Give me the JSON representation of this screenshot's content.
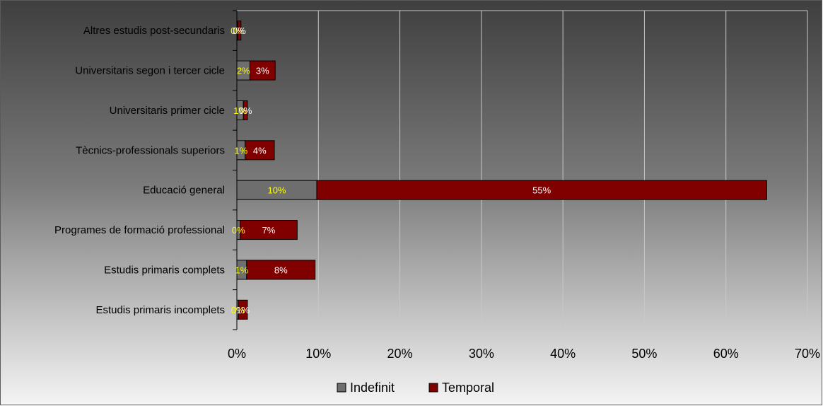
{
  "chart_data": {
    "type": "bar",
    "orientation": "horizontal",
    "stacked": true,
    "categories": [
      "Altres estudis post-secundaris",
      "Universitaris segon i tercer cicle",
      "Universitaris primer cicle",
      "Tècnics-professionals superiors",
      "Educació general",
      "Programes de formació professional",
      "Estudis primaris complets",
      "Estudis primaris incomplets"
    ],
    "series": [
      {
        "name": "Indefinit",
        "color": "#6e6e6e",
        "label_color": "#ffff00",
        "values": [
          0.1,
          1.6,
          0.8,
          1.0,
          9.8,
          0.4,
          1.2,
          0.2
        ],
        "labels": [
          "0%",
          "2%",
          "1%",
          "1%",
          "10%",
          "0%",
          "1%",
          "0%"
        ]
      },
      {
        "name": "Temporal",
        "color": "#800000",
        "label_color": "#ffffff",
        "values": [
          0.4,
          3.1,
          0.5,
          3.6,
          55.2,
          7.0,
          8.4,
          1.1
        ],
        "labels": [
          "0%",
          "3%",
          "0%",
          "4%",
          "55%",
          "7%",
          "8%",
          "1%"
        ]
      }
    ],
    "xaxis": {
      "min": 0,
      "max": 70,
      "ticks": [
        "0%",
        "10%",
        "20%",
        "30%",
        "40%",
        "50%",
        "60%",
        "70%"
      ]
    },
    "grid": true,
    "legend": "bottom-center",
    "colors": {
      "gridline": "#c8c8c8",
      "bar_border": "#000000"
    }
  }
}
